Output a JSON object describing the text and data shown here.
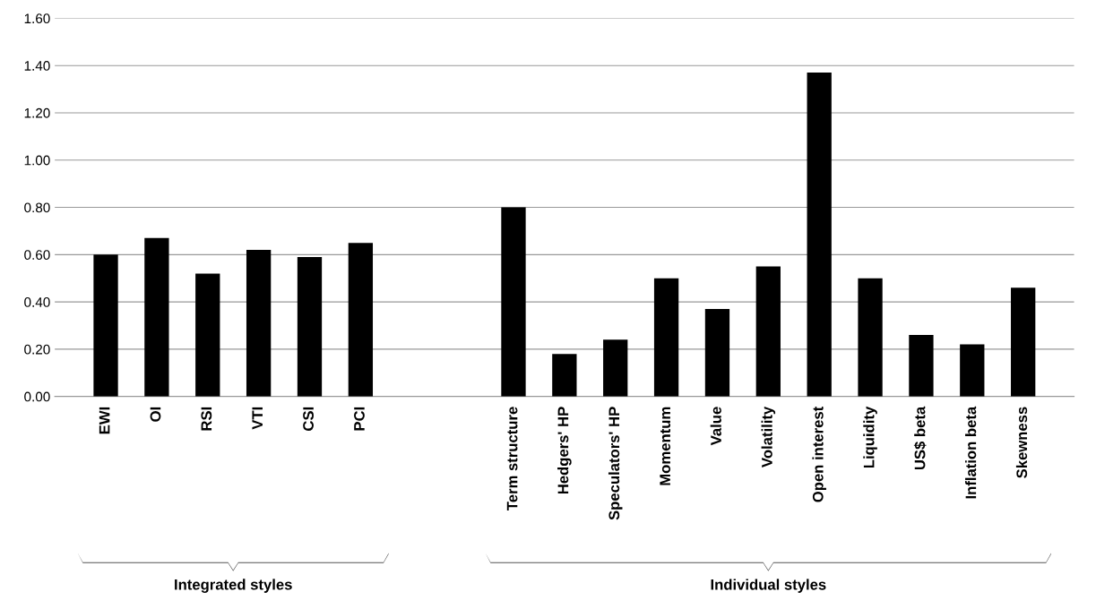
{
  "chart_data": {
    "type": "bar",
    "categories": [
      "EWI",
      "OI",
      "RSI",
      "VTI",
      "CSI",
      "PCI",
      null,
      null,
      "Term structure",
      "Hedgers' HP",
      "Speculators' HP",
      "Momentum",
      "Value",
      "Volatility",
      "Open interest",
      "Liquidity",
      "US$ beta",
      "Inflation beta",
      "Skewness"
    ],
    "values": [
      0.6,
      0.67,
      0.52,
      0.62,
      0.59,
      0.65,
      null,
      null,
      0.8,
      0.18,
      0.24,
      0.5,
      0.37,
      0.55,
      1.37,
      0.5,
      0.26,
      0.22,
      0.46
    ],
    "color": "#000000",
    "ylim": [
      0,
      1.6
    ],
    "yticks": [
      {
        "value": 0,
        "label": "0.00"
      },
      {
        "value": 0.2,
        "label": "0.20"
      },
      {
        "value": 0.4,
        "label": "0.40"
      },
      {
        "value": 0.6,
        "label": "0.60"
      },
      {
        "value": 0.8,
        "label": "0.80"
      },
      {
        "value": 1.0,
        "label": "1.00"
      },
      {
        "value": 1.2,
        "label": "1.20"
      },
      {
        "value": 1.4,
        "label": "1.40"
      },
      {
        "value": 1.6,
        "label": "1.60"
      }
    ],
    "grid": "y",
    "annotations": [
      "Integrated styles",
      "Individual styles"
    ]
  }
}
